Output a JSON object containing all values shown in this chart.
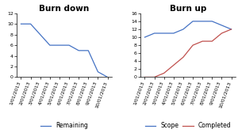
{
  "burndown": {
    "title": "Burn down",
    "dates": [
      "1/01/2013",
      "2/01/2013",
      "3/01/2013",
      "4/01/2013",
      "5/01/2013",
      "6/01/2013",
      "7/01/2013",
      "8/01/2013",
      "9/01/2013",
      "10/01/2013"
    ],
    "remaining": [
      10,
      10,
      8,
      6,
      6,
      6,
      5,
      5,
      1,
      0
    ],
    "line_color": "#4472C4",
    "ylim": [
      0,
      12
    ],
    "yticks": [
      0,
      2,
      4,
      6,
      8,
      10,
      12
    ],
    "legend": "Remaining"
  },
  "burnup": {
    "title": "Burn up",
    "dates": [
      "1/01/2013",
      "2/01/2013",
      "3/01/2013",
      "4/01/2013",
      "5/01/2013",
      "6/01/2013",
      "7/01/2013",
      "8/01/2013",
      "9/01/2013",
      "10/01/2013"
    ],
    "scope": [
      10,
      11,
      11,
      11,
      12,
      14,
      14,
      14,
      13,
      12
    ],
    "completed": [
      0,
      0,
      1,
      3,
      5,
      8,
      9,
      9,
      11,
      12
    ],
    "scope_color": "#4472C4",
    "completed_color": "#C0504D",
    "ylim": [
      0,
      16
    ],
    "yticks": [
      0,
      2,
      4,
      6,
      8,
      10,
      12,
      14,
      16
    ],
    "legend_scope": "Scope",
    "legend_completed": "Completed"
  },
  "background_color": "#FFFFFF",
  "tick_fontsize": 4.5,
  "legend_fontsize": 5.5,
  "title_fontsize": 7.5
}
